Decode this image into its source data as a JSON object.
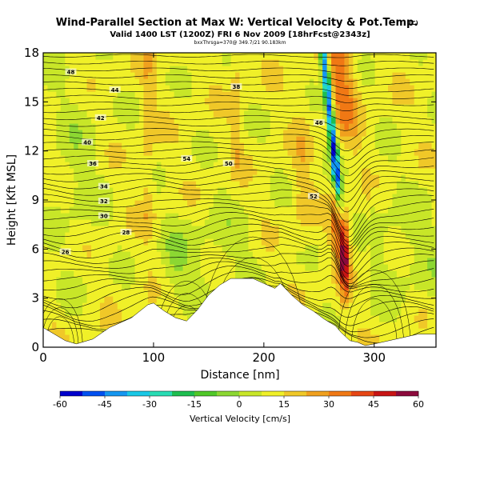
{
  "chart_data": {
    "type": "heatmap",
    "title": "Wind-Parallel Section at Max W: Vertical Velocity & Pot.Temp.",
    "title_mark": "(C)",
    "subtitle": "Valid 1400 LST (1200Z) FRI 6 Nov 2009 [18hrFcst@2343z]",
    "info_line": "bxxThrsga=370@ 349.7/21 90.183km",
    "xlabel": "Distance [nm]",
    "ylabel": "Height [Kft MSL]",
    "xlim": [
      0,
      356
    ],
    "ylim": [
      0,
      18
    ],
    "xticks": [
      "0",
      "100",
      "200",
      "300"
    ],
    "xtick_values": [
      0,
      100,
      200,
      300
    ],
    "yticks": [
      "0",
      "3",
      "6",
      "9",
      "12",
      "15",
      "18"
    ],
    "ytick_values": [
      0,
      3,
      6,
      9,
      12,
      15,
      18
    ],
    "grid": false,
    "colorbar": {
      "label": "Vertical Velocity [cm/s]",
      "labels": [
        "-60",
        "-45",
        "-30",
        "-15",
        "0",
        "15",
        "30",
        "45",
        "60"
      ],
      "values": [
        -60,
        -45,
        -30,
        -15,
        0,
        15,
        30,
        45,
        60
      ],
      "colors": [
        "#0000cc",
        "#0050f0",
        "#1496f0",
        "#19c8e6",
        "#28dcb4",
        "#1ebe50",
        "#50c828",
        "#8cd732",
        "#c8e628",
        "#f0f028",
        "#f0c828",
        "#f0a01e",
        "#f07814",
        "#e64614",
        "#c81414",
        "#8c0a3c"
      ]
    },
    "theta_contour_labels": [
      "48",
      "44",
      "42",
      "40",
      "36",
      "34",
      "32",
      "30",
      "28",
      "26",
      "38",
      "46",
      "50",
      "54",
      "52"
    ],
    "terrain_profile": {
      "x": [
        0,
        10,
        20,
        30,
        45,
        60,
        80,
        95,
        100,
        110,
        120,
        130,
        140,
        150,
        160,
        170,
        180,
        190,
        200,
        210,
        215,
        225,
        235,
        245,
        255,
        265,
        270,
        278,
        285,
        292,
        300,
        320,
        340,
        356
      ],
      "height": [
        1.2,
        0.8,
        0.4,
        0.2,
        0.5,
        1.2,
        1.8,
        2.6,
        2.7,
        2.2,
        1.8,
        1.6,
        2.3,
        3.2,
        3.8,
        4.2,
        4.2,
        4.2,
        3.9,
        3.6,
        3.9,
        3.2,
        2.6,
        2.2,
        1.7,
        1.3,
        0.9,
        0.4,
        0.3,
        0.1,
        0.2,
        0.5,
        0.8,
        0.8
      ]
    }
  }
}
